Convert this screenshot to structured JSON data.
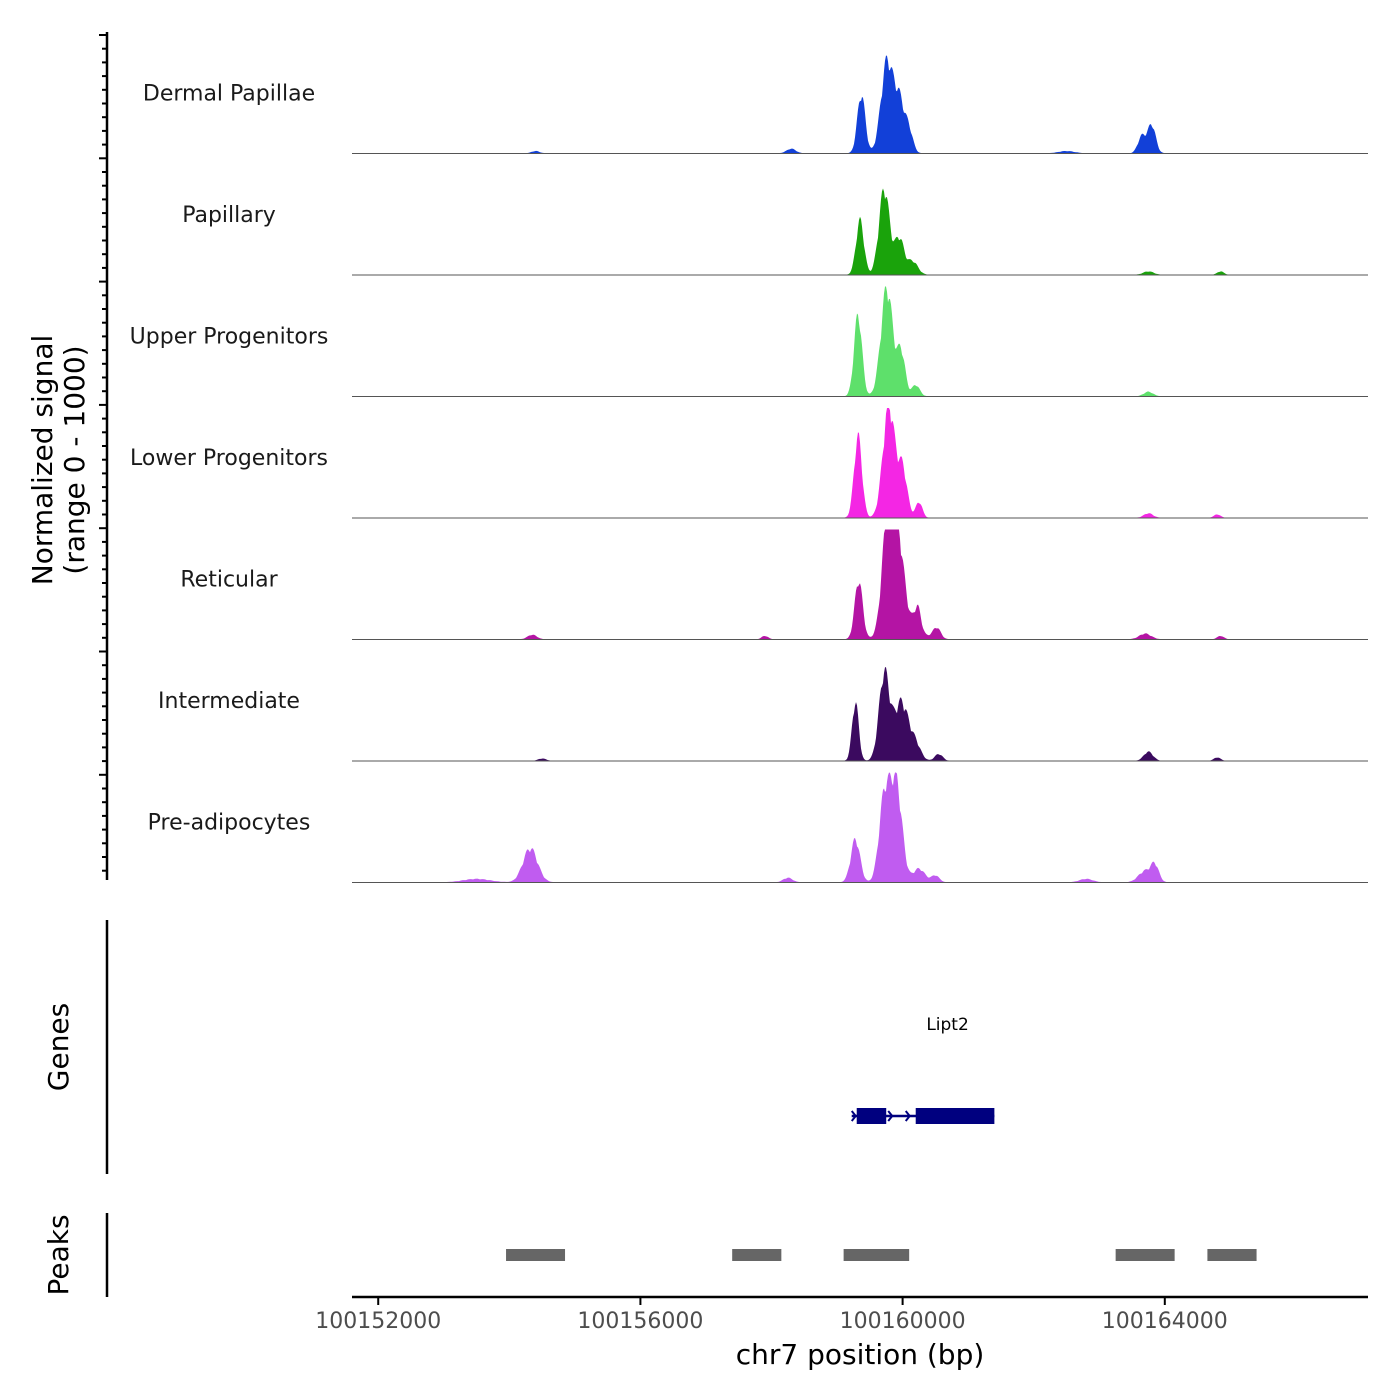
{
  "chart_data": {
    "type": "area",
    "title": "",
    "ylabel_line1": "Normalized signal",
    "ylabel_line2": "(range 0 - 1000)",
    "xlabel": "chr7 position (bp)",
    "xlim": [
      100151600,
      100167100
    ],
    "ylim": [
      0,
      1000
    ],
    "x_ticks": [
      100152000,
      100156000,
      100160000,
      100164000
    ],
    "x_tick_labels": [
      "100152000",
      "100156000",
      "100160000",
      "100164000"
    ],
    "series": [
      {
        "name": "Dermal Papillae",
        "color": "#1240d8",
        "peaks": [
          [
            100159370,
            60,
            520
          ],
          [
            100159760,
            90,
            800
          ],
          [
            100159950,
            80,
            450
          ],
          [
            100160100,
            60,
            180
          ],
          [
            100158300,
            70,
            40
          ],
          [
            100163650,
            60,
            150
          ],
          [
            100163800,
            60,
            250
          ],
          [
            100162500,
            120,
            20
          ],
          [
            100154400,
            60,
            20
          ]
        ]
      },
      {
        "name": "Papillary",
        "color": "#1aa30b",
        "peaks": [
          [
            100159350,
            60,
            480
          ],
          [
            100159720,
            80,
            760
          ],
          [
            100159950,
            70,
            320
          ],
          [
            100160150,
            80,
            120
          ],
          [
            100163750,
            80,
            30
          ],
          [
            100164850,
            50,
            30
          ]
        ]
      },
      {
        "name": "Upper Progenitors",
        "color": "#5ee06b",
        "peaks": [
          [
            100159320,
            60,
            720
          ],
          [
            100159760,
            90,
            960
          ],
          [
            100159980,
            60,
            380
          ],
          [
            100160200,
            60,
            100
          ],
          [
            100163750,
            70,
            40
          ]
        ]
      },
      {
        "name": "Lower Progenitors",
        "color": "#f426e4",
        "peaks": [
          [
            100159320,
            60,
            720
          ],
          [
            100159790,
            90,
            1000
          ],
          [
            100160000,
            70,
            420
          ],
          [
            100160250,
            50,
            140
          ],
          [
            100163750,
            70,
            40
          ],
          [
            100164800,
            50,
            30
          ]
        ]
      },
      {
        "name": "Reticular",
        "color": "#b414a4",
        "peaks": [
          [
            100159330,
            60,
            520
          ],
          [
            100159760,
            80,
            880
          ],
          [
            100159920,
            90,
            780
          ],
          [
            100160230,
            50,
            200
          ],
          [
            100160520,
            60,
            100
          ],
          [
            100160000,
            200,
            180
          ],
          [
            100154350,
            70,
            40
          ],
          [
            100157900,
            50,
            30
          ],
          [
            100163700,
            90,
            50
          ],
          [
            100164850,
            50,
            30
          ]
        ]
      },
      {
        "name": "Intermediate",
        "color": "#3b0a5f",
        "peaks": [
          [
            100159280,
            50,
            520
          ],
          [
            100159720,
            80,
            760
          ],
          [
            100159980,
            110,
            520
          ],
          [
            100160200,
            80,
            130
          ],
          [
            100160550,
            60,
            60
          ],
          [
            100163750,
            70,
            80
          ],
          [
            100164800,
            50,
            30
          ],
          [
            100154500,
            60,
            20
          ]
        ]
      },
      {
        "name": "Pre-adipocytes",
        "color": "#c05cf0",
        "peaks": [
          [
            100154320,
            110,
            300
          ],
          [
            100159280,
            70,
            380
          ],
          [
            100159720,
            80,
            720
          ],
          [
            100159900,
            90,
            880
          ],
          [
            100160250,
            90,
            120
          ],
          [
            100160500,
            60,
            60
          ],
          [
            100163700,
            100,
            100
          ],
          [
            100163850,
            60,
            140
          ],
          [
            100153500,
            200,
            30
          ],
          [
            100158250,
            70,
            40
          ],
          [
            100162800,
            100,
            30
          ]
        ]
      }
    ],
    "genes": [
      {
        "name": "Lipt2",
        "strand": "+",
        "start": 100159300,
        "end": 100161400,
        "exons": [
          [
            100159300,
            100159750
          ],
          [
            100160200,
            100161400
          ]
        ]
      }
    ],
    "peak_regions": [
      [
        100153950,
        100154850
      ],
      [
        100157400,
        100158150
      ],
      [
        100159100,
        100160100
      ],
      [
        100163250,
        100164150
      ],
      [
        100164650,
        100165400
      ]
    ],
    "panel_labels": {
      "genes": "Genes",
      "peaks": "Peaks"
    }
  }
}
